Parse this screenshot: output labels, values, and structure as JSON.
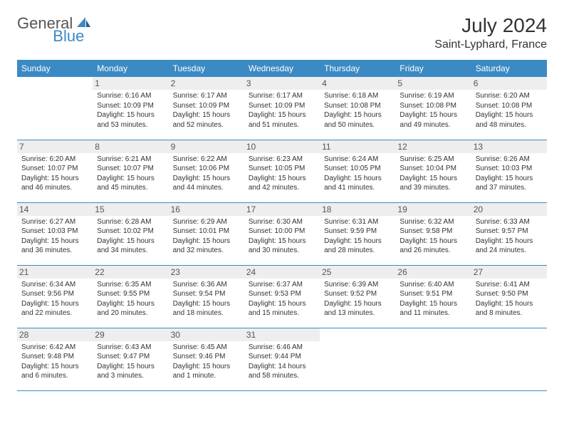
{
  "logo": {
    "text1": "General",
    "text2": "Blue"
  },
  "title": "July 2024",
  "location": "Saint-Lyphard, France",
  "header_bg": "#3b8ac4",
  "header_fg": "#ffffff",
  "divider_color": "#3b8ac4",
  "daynum_bg": "#eeeeee",
  "weekdays": [
    "Sunday",
    "Monday",
    "Tuesday",
    "Wednesday",
    "Thursday",
    "Friday",
    "Saturday"
  ],
  "weeks": [
    [
      {
        "day": "",
        "lines": [
          "",
          "",
          "",
          ""
        ]
      },
      {
        "day": "1",
        "lines": [
          "Sunrise: 6:16 AM",
          "Sunset: 10:09 PM",
          "Daylight: 15 hours",
          "and 53 minutes."
        ]
      },
      {
        "day": "2",
        "lines": [
          "Sunrise: 6:17 AM",
          "Sunset: 10:09 PM",
          "Daylight: 15 hours",
          "and 52 minutes."
        ]
      },
      {
        "day": "3",
        "lines": [
          "Sunrise: 6:17 AM",
          "Sunset: 10:09 PM",
          "Daylight: 15 hours",
          "and 51 minutes."
        ]
      },
      {
        "day": "4",
        "lines": [
          "Sunrise: 6:18 AM",
          "Sunset: 10:08 PM",
          "Daylight: 15 hours",
          "and 50 minutes."
        ]
      },
      {
        "day": "5",
        "lines": [
          "Sunrise: 6:19 AM",
          "Sunset: 10:08 PM",
          "Daylight: 15 hours",
          "and 49 minutes."
        ]
      },
      {
        "day": "6",
        "lines": [
          "Sunrise: 6:20 AM",
          "Sunset: 10:08 PM",
          "Daylight: 15 hours",
          "and 48 minutes."
        ]
      }
    ],
    [
      {
        "day": "7",
        "lines": [
          "Sunrise: 6:20 AM",
          "Sunset: 10:07 PM",
          "Daylight: 15 hours",
          "and 46 minutes."
        ]
      },
      {
        "day": "8",
        "lines": [
          "Sunrise: 6:21 AM",
          "Sunset: 10:07 PM",
          "Daylight: 15 hours",
          "and 45 minutes."
        ]
      },
      {
        "day": "9",
        "lines": [
          "Sunrise: 6:22 AM",
          "Sunset: 10:06 PM",
          "Daylight: 15 hours",
          "and 44 minutes."
        ]
      },
      {
        "day": "10",
        "lines": [
          "Sunrise: 6:23 AM",
          "Sunset: 10:05 PM",
          "Daylight: 15 hours",
          "and 42 minutes."
        ]
      },
      {
        "day": "11",
        "lines": [
          "Sunrise: 6:24 AM",
          "Sunset: 10:05 PM",
          "Daylight: 15 hours",
          "and 41 minutes."
        ]
      },
      {
        "day": "12",
        "lines": [
          "Sunrise: 6:25 AM",
          "Sunset: 10:04 PM",
          "Daylight: 15 hours",
          "and 39 minutes."
        ]
      },
      {
        "day": "13",
        "lines": [
          "Sunrise: 6:26 AM",
          "Sunset: 10:03 PM",
          "Daylight: 15 hours",
          "and 37 minutes."
        ]
      }
    ],
    [
      {
        "day": "14",
        "lines": [
          "Sunrise: 6:27 AM",
          "Sunset: 10:03 PM",
          "Daylight: 15 hours",
          "and 36 minutes."
        ]
      },
      {
        "day": "15",
        "lines": [
          "Sunrise: 6:28 AM",
          "Sunset: 10:02 PM",
          "Daylight: 15 hours",
          "and 34 minutes."
        ]
      },
      {
        "day": "16",
        "lines": [
          "Sunrise: 6:29 AM",
          "Sunset: 10:01 PM",
          "Daylight: 15 hours",
          "and 32 minutes."
        ]
      },
      {
        "day": "17",
        "lines": [
          "Sunrise: 6:30 AM",
          "Sunset: 10:00 PM",
          "Daylight: 15 hours",
          "and 30 minutes."
        ]
      },
      {
        "day": "18",
        "lines": [
          "Sunrise: 6:31 AM",
          "Sunset: 9:59 PM",
          "Daylight: 15 hours",
          "and 28 minutes."
        ]
      },
      {
        "day": "19",
        "lines": [
          "Sunrise: 6:32 AM",
          "Sunset: 9:58 PM",
          "Daylight: 15 hours",
          "and 26 minutes."
        ]
      },
      {
        "day": "20",
        "lines": [
          "Sunrise: 6:33 AM",
          "Sunset: 9:57 PM",
          "Daylight: 15 hours",
          "and 24 minutes."
        ]
      }
    ],
    [
      {
        "day": "21",
        "lines": [
          "Sunrise: 6:34 AM",
          "Sunset: 9:56 PM",
          "Daylight: 15 hours",
          "and 22 minutes."
        ]
      },
      {
        "day": "22",
        "lines": [
          "Sunrise: 6:35 AM",
          "Sunset: 9:55 PM",
          "Daylight: 15 hours",
          "and 20 minutes."
        ]
      },
      {
        "day": "23",
        "lines": [
          "Sunrise: 6:36 AM",
          "Sunset: 9:54 PM",
          "Daylight: 15 hours",
          "and 18 minutes."
        ]
      },
      {
        "day": "24",
        "lines": [
          "Sunrise: 6:37 AM",
          "Sunset: 9:53 PM",
          "Daylight: 15 hours",
          "and 15 minutes."
        ]
      },
      {
        "day": "25",
        "lines": [
          "Sunrise: 6:39 AM",
          "Sunset: 9:52 PM",
          "Daylight: 15 hours",
          "and 13 minutes."
        ]
      },
      {
        "day": "26",
        "lines": [
          "Sunrise: 6:40 AM",
          "Sunset: 9:51 PM",
          "Daylight: 15 hours",
          "and 11 minutes."
        ]
      },
      {
        "day": "27",
        "lines": [
          "Sunrise: 6:41 AM",
          "Sunset: 9:50 PM",
          "Daylight: 15 hours",
          "and 8 minutes."
        ]
      }
    ],
    [
      {
        "day": "28",
        "lines": [
          "Sunrise: 6:42 AM",
          "Sunset: 9:48 PM",
          "Daylight: 15 hours",
          "and 6 minutes."
        ]
      },
      {
        "day": "29",
        "lines": [
          "Sunrise: 6:43 AM",
          "Sunset: 9:47 PM",
          "Daylight: 15 hours",
          "and 3 minutes."
        ]
      },
      {
        "day": "30",
        "lines": [
          "Sunrise: 6:45 AM",
          "Sunset: 9:46 PM",
          "Daylight: 15 hours",
          "and 1 minute."
        ]
      },
      {
        "day": "31",
        "lines": [
          "Sunrise: 6:46 AM",
          "Sunset: 9:44 PM",
          "Daylight: 14 hours",
          "and 58 minutes."
        ]
      },
      {
        "day": "",
        "lines": [
          "",
          "",
          "",
          ""
        ]
      },
      {
        "day": "",
        "lines": [
          "",
          "",
          "",
          ""
        ]
      },
      {
        "day": "",
        "lines": [
          "",
          "",
          "",
          ""
        ]
      }
    ]
  ]
}
